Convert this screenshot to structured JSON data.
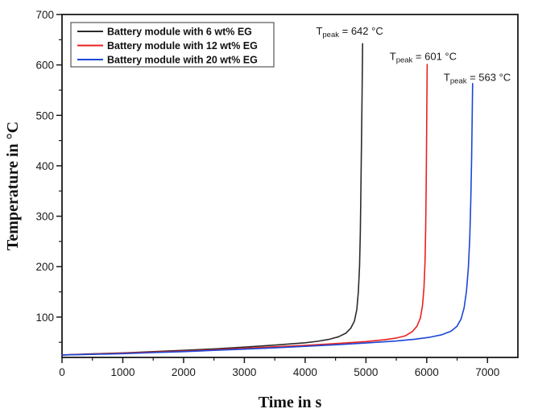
{
  "figure": {
    "background": "#ffffff",
    "axis_color": "#1a1a1a"
  },
  "chart_data": {
    "type": "line",
    "title": "",
    "xlabel": "Time in s",
    "ylabel": "Temperature in °C",
    "xlim": [
      0,
      7500
    ],
    "ylim": [
      20,
      700
    ],
    "x_major_ticks": [
      0,
      1000,
      2000,
      3000,
      4000,
      5000,
      6000,
      7000
    ],
    "x_minor_ticks": [
      500,
      1500,
      2500,
      3500,
      4500,
      5500,
      6500
    ],
    "y_major_ticks": [
      100,
      200,
      300,
      400,
      500,
      600,
      700
    ],
    "y_minor_ticks": [
      50,
      150,
      250,
      350,
      450,
      550,
      650
    ],
    "grid": false,
    "legend": {
      "position": "top-left",
      "border_color": "#555555",
      "background": "#ffffff"
    },
    "series": [
      {
        "name": "Battery module with 6 wt% EG",
        "color": "#2b2b2b",
        "peak_temp_c": 642,
        "peak_time_s": 4945,
        "points": [
          [
            0,
            25
          ],
          [
            500,
            27
          ],
          [
            1000,
            29
          ],
          [
            1500,
            31.5
          ],
          [
            2000,
            34
          ],
          [
            2500,
            37
          ],
          [
            3000,
            40.5
          ],
          [
            3500,
            44.5
          ],
          [
            4000,
            49
          ],
          [
            4200,
            52
          ],
          [
            4400,
            56
          ],
          [
            4550,
            61
          ],
          [
            4670,
            68
          ],
          [
            4750,
            78
          ],
          [
            4810,
            92
          ],
          [
            4850,
            115
          ],
          [
            4875,
            150
          ],
          [
            4895,
            200
          ],
          [
            4908,
            270
          ],
          [
            4918,
            355
          ],
          [
            4927,
            445
          ],
          [
            4936,
            535
          ],
          [
            4945,
            642
          ]
        ]
      },
      {
        "name": "Battery module with 12 wt% EG",
        "color": "#e8211f",
        "peak_temp_c": 601,
        "peak_time_s": 6008,
        "points": [
          [
            0,
            25
          ],
          [
            500,
            26.5
          ],
          [
            1000,
            28.5
          ],
          [
            1500,
            30.5
          ],
          [
            2000,
            32.5
          ],
          [
            2500,
            35
          ],
          [
            3000,
            38
          ],
          [
            3500,
            41
          ],
          [
            4000,
            44
          ],
          [
            4500,
            47.5
          ],
          [
            5000,
            51.5
          ],
          [
            5300,
            55
          ],
          [
            5500,
            58.5
          ],
          [
            5650,
            63
          ],
          [
            5760,
            71
          ],
          [
            5840,
            82
          ],
          [
            5895,
            98
          ],
          [
            5930,
            122
          ],
          [
            5955,
            158
          ],
          [
            5972,
            210
          ],
          [
            5983,
            275
          ],
          [
            5991,
            355
          ],
          [
            5998,
            445
          ],
          [
            6003,
            530
          ],
          [
            6008,
            601
          ]
        ]
      },
      {
        "name": "Battery module with 20 wt% EG",
        "color": "#1b46d6",
        "peak_temp_c": 563,
        "peak_time_s": 6755,
        "points": [
          [
            0,
            25
          ],
          [
            500,
            26
          ],
          [
            1000,
            27.5
          ],
          [
            1500,
            29.5
          ],
          [
            2000,
            31.5
          ],
          [
            2500,
            34
          ],
          [
            3000,
            36.5
          ],
          [
            3500,
            39
          ],
          [
            4000,
            42
          ],
          [
            4500,
            45
          ],
          [
            5000,
            48.5
          ],
          [
            5500,
            52.5
          ],
          [
            5800,
            56
          ],
          [
            6050,
            60
          ],
          [
            6250,
            65
          ],
          [
            6400,
            72
          ],
          [
            6500,
            82
          ],
          [
            6565,
            96
          ],
          [
            6615,
            118
          ],
          [
            6655,
            152
          ],
          [
            6685,
            198
          ],
          [
            6708,
            255
          ],
          [
            6725,
            330
          ],
          [
            6738,
            410
          ],
          [
            6747,
            490
          ],
          [
            6755,
            563
          ]
        ]
      }
    ],
    "annotations": [
      {
        "pre": "T",
        "sub": "peak",
        "post": " = 642 °C",
        "x": 4180,
        "y": 660
      },
      {
        "pre": "T",
        "sub": "peak",
        "post": " = 601 °C",
        "x": 5390,
        "y": 610
      },
      {
        "pre": "T",
        "sub": "peak",
        "post": " = 563 °C",
        "x": 6280,
        "y": 568
      }
    ]
  }
}
